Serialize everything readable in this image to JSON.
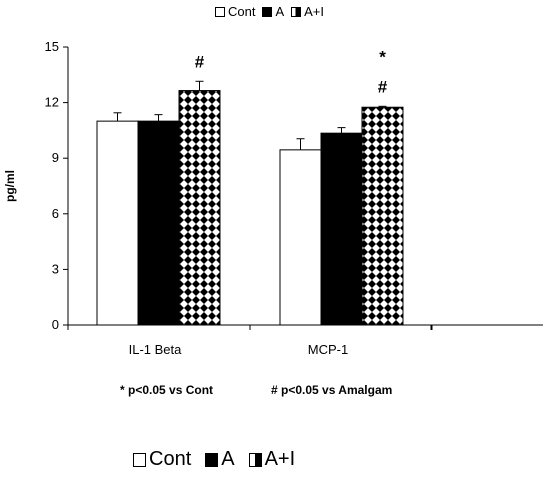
{
  "chart_data": {
    "type": "bar",
    "categories": [
      "IL-1 Beta",
      "MCP-1"
    ],
    "series": [
      {
        "name": "Cont",
        "values": [
          11.0,
          9.45
        ],
        "errors": [
          0.45,
          0.6
        ],
        "fill": "#ffffff"
      },
      {
        "name": "A",
        "values": [
          11.0,
          10.35
        ],
        "errors": [
          0.35,
          0.3
        ],
        "fill": "#000000"
      },
      {
        "name": "A+I",
        "values": [
          12.65,
          11.75
        ],
        "errors": [
          0.5,
          0.05
        ],
        "fill": "checker"
      }
    ],
    "ylabel": "pg/ml",
    "ylim": [
      0,
      15
    ],
    "yticks": [
      "0",
      "3",
      "6",
      "9",
      "12",
      "15"
    ],
    "grid": false,
    "annotations": [
      {
        "category_index": 0,
        "series_index": 2,
        "text": "#"
      },
      {
        "category_index": 1,
        "series_index": 2,
        "text": "#"
      },
      {
        "category_index": 1,
        "series_index": 2,
        "text": "*"
      }
    ]
  },
  "legend_top": [
    {
      "label": "Cont",
      "swatch": "white"
    },
    {
      "label": "A",
      "swatch": "black"
    },
    {
      "label": "A+I",
      "swatch": "half"
    }
  ],
  "legend_bottom": [
    {
      "label": "Cont",
      "swatch": "white"
    },
    {
      "label": "A",
      "swatch": "black"
    },
    {
      "label": "A+I",
      "swatch": "half"
    }
  ],
  "notes": {
    "left": "* p<0.05 vs Cont",
    "right": "# p<0.05 vs Amalgam"
  }
}
